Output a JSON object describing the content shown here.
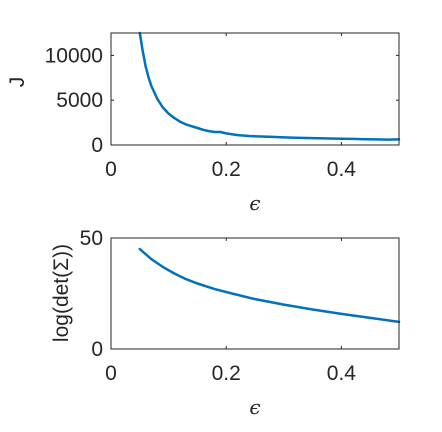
{
  "chart_data": [
    {
      "type": "line",
      "xlabel": "ϵ",
      "ylabel": "J",
      "xlim": [
        0,
        0.5
      ],
      "ylim": [
        0,
        12500
      ],
      "xticks": [
        0,
        0.2,
        0.4
      ],
      "xtick_labels": [
        "0",
        "0.2",
        "0.4"
      ],
      "yticks": [
        0,
        5000,
        10000
      ],
      "ytick_labels": [
        "0",
        "5000",
        "10000"
      ],
      "grid": false,
      "color": "#0072BD",
      "series": [
        {
          "x": [
            0.05,
            0.055,
            0.06,
            0.065,
            0.07,
            0.08,
            0.09,
            0.1,
            0.11,
            0.12,
            0.13,
            0.14,
            0.15,
            0.16,
            0.17,
            0.18,
            0.19,
            0.2,
            0.22,
            0.24,
            0.26,
            0.28,
            0.3,
            0.32,
            0.34,
            0.36,
            0.38,
            0.4,
            0.42,
            0.44,
            0.46,
            0.48,
            0.5
          ],
          "y": [
            12500,
            10500,
            8800,
            7600,
            6600,
            5200,
            4200,
            3500,
            3000,
            2600,
            2300,
            2100,
            1900,
            1700,
            1550,
            1450,
            1450,
            1300,
            1100,
            1000,
            950,
            900,
            850,
            800,
            780,
            750,
            720,
            700,
            680,
            650,
            620,
            600,
            620
          ]
        }
      ]
    },
    {
      "type": "line",
      "xlabel": "ϵ",
      "ylabel": "log(det(Σ))",
      "xlim": [
        0,
        0.5
      ],
      "ylim": [
        0,
        50
      ],
      "xticks": [
        0,
        0.2,
        0.4
      ],
      "xtick_labels": [
        "0",
        "0.2",
        "0.4"
      ],
      "yticks": [
        0,
        50
      ],
      "ytick_labels": [
        "0",
        "50"
      ],
      "grid": false,
      "color": "#0072BD",
      "series": [
        {
          "x": [
            0.05,
            0.07,
            0.09,
            0.11,
            0.13,
            0.15,
            0.18,
            0.21,
            0.25,
            0.3,
            0.35,
            0.4,
            0.45,
            0.5
          ],
          "y": [
            45,
            40.5,
            37,
            34,
            31.5,
            29.5,
            27,
            25,
            22.5,
            20,
            17.8,
            15.8,
            14,
            12.2
          ]
        }
      ]
    }
  ]
}
